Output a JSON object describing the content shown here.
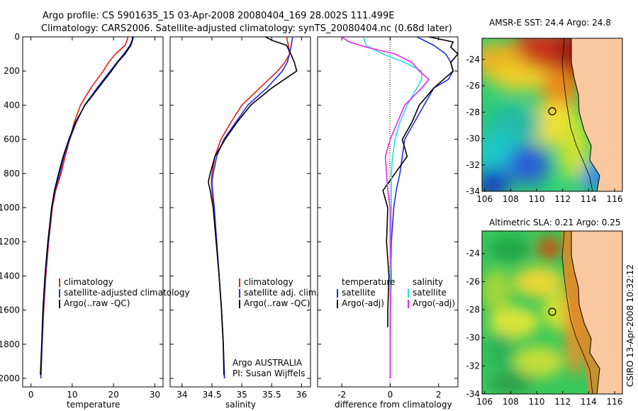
{
  "figure": {
    "title_line1": "Argo profile: CS 5901635_15 03-Apr-2008 20080404_169 28.002S 111.499E",
    "title_line2": "Climatology: CARS2006. Satellite-adjusted climatology: synTS_20080404.nc (0.68d later)",
    "credit": "CSIRO 13-Apr-2008 10:32:12",
    "float_info_line1": "Argo AUSTRALIA",
    "float_info_line2": "PI: Susan Wijffels"
  },
  "colors": {
    "climatology": "#e41a1c",
    "satellite": "#1f2ee0",
    "argo": "#000000",
    "sal_sat": "#22e0e0",
    "sal_argo": "#ee22ee",
    "land": "#f9c8a0"
  },
  "legends": {
    "temp": [
      "climatology",
      "satellite-adjusted climatology",
      "Argo(..raw -QC)"
    ],
    "sal": [
      "climatology",
      "satellite adj. clim.",
      "Argo(..raw -QC)"
    ],
    "diff_temp_header": "temperature",
    "diff_sal_header": "salinity",
    "diff_temp": [
      "satellite",
      "Argo(-adj)"
    ],
    "diff_sal": [
      "satellite",
      "Argo(-adj)"
    ]
  },
  "chart_data": [
    {
      "type": "line",
      "xlabel": "temperature",
      "ylabel": "",
      "xlim": [
        -2,
        32
      ],
      "ylim": [
        2050,
        0
      ],
      "xticks": [
        0,
        10,
        20,
        30
      ],
      "yticks": [
        0,
        200,
        400,
        600,
        800,
        1000,
        1200,
        1400,
        1600,
        1800,
        2000
      ],
      "series": [
        {
          "name": "climatology",
          "color_key": "climatology",
          "pressure": [
            0,
            20,
            50,
            100,
            150,
            200,
            300,
            400,
            500,
            600,
            700,
            800,
            900,
            1000,
            1200,
            1400,
            1600,
            1800,
            2000
          ],
          "values": [
            23.5,
            23.3,
            22.8,
            20.5,
            18.8,
            17.5,
            14.5,
            12,
            10.5,
            9.4,
            8.3,
            7.3,
            6,
            5.2,
            4.3,
            3.6,
            3.1,
            2.7,
            2.4
          ]
        },
        {
          "name": "satellite-adjusted climatology",
          "color_key": "satellite",
          "pressure": [
            0,
            20,
            50,
            100,
            150,
            200,
            300,
            400,
            500,
            600,
            700,
            800,
            900,
            1000,
            1200,
            1400,
            1600,
            1800,
            2000
          ],
          "values": [
            24.6,
            24.5,
            24,
            22.5,
            20.8,
            19.2,
            16,
            13,
            11,
            9.4,
            8,
            7,
            5.8,
            5.1,
            4.2,
            3.5,
            3,
            2.7,
            2.4
          ]
        },
        {
          "name": "Argo(..raw -QC)",
          "color_key": "argo",
          "pressure": [
            0,
            20,
            50,
            100,
            150,
            200,
            300,
            400,
            500,
            600,
            700,
            800,
            900,
            1000,
            1200,
            1400,
            1600,
            1800,
            1980
          ],
          "values": [
            24.8,
            24.6,
            24.2,
            22.8,
            21,
            19.5,
            16.3,
            13.1,
            10.8,
            9.2,
            7.8,
            6.7,
            5.7,
            5,
            4.1,
            3.4,
            2.9,
            2.6,
            2.3
          ]
        }
      ]
    },
    {
      "type": "line",
      "xlabel": "salinity",
      "ylabel": "",
      "xlim": [
        33.8,
        36.15
      ],
      "ylim": [
        2050,
        0
      ],
      "xticks": [
        34,
        34.5,
        35,
        35.5,
        36
      ],
      "xticklabels": [
        "34",
        "34.5",
        "35",
        "35.5",
        "36"
      ],
      "series": [
        {
          "name": "climatology",
          "color_key": "climatology",
          "pressure": [
            0,
            50,
            100,
            150,
            200,
            300,
            400,
            500,
            600,
            700,
            800,
            850,
            900,
            1000,
            1200,
            1400,
            1600,
            1800,
            2000
          ],
          "values": [
            35.75,
            35.78,
            35.8,
            35.72,
            35.6,
            35.3,
            35.0,
            34.82,
            34.65,
            34.55,
            34.5,
            34.49,
            34.5,
            34.53,
            34.58,
            34.62,
            34.66,
            34.69,
            34.71
          ]
        },
        {
          "name": "satellite adj. clim.",
          "color_key": "satellite",
          "pressure": [
            0,
            50,
            100,
            150,
            200,
            300,
            400,
            500,
            600,
            700,
            800,
            850,
            900,
            1000,
            1200,
            1400,
            1600,
            1800,
            2000
          ],
          "values": [
            35.85,
            35.83,
            35.8,
            35.76,
            35.68,
            35.42,
            35.1,
            34.9,
            34.7,
            34.58,
            34.52,
            34.5,
            34.51,
            34.54,
            34.58,
            34.62,
            34.66,
            34.69,
            34.71
          ]
        },
        {
          "name": "Argo(..raw -QC)",
          "color_key": "argo",
          "pressure": [
            0,
            20,
            50,
            100,
            150,
            200,
            300,
            400,
            500,
            600,
            700,
            800,
            850,
            900,
            1000,
            1200,
            1400,
            1600,
            1800,
            1980
          ],
          "values": [
            35.4,
            35.5,
            35.75,
            35.82,
            35.88,
            35.92,
            35.5,
            35.15,
            34.92,
            34.72,
            34.55,
            34.47,
            34.44,
            34.47,
            34.52,
            34.57,
            34.62,
            34.66,
            34.69,
            34.7
          ]
        }
      ]
    },
    {
      "type": "line",
      "xlabel": "difference from climatology",
      "ylabel": "",
      "xlim": [
        -3,
        2.8
      ],
      "ylim": [
        2050,
        0
      ],
      "xticks": [
        -2,
        0,
        2
      ],
      "series": [
        {
          "name": "temperature satellite",
          "color_key": "satellite",
          "pressure": [
            0,
            50,
            100,
            150,
            200,
            250,
            300,
            400,
            500,
            600,
            700,
            800,
            900,
            1000,
            1200,
            1400,
            1600,
            1800,
            2000
          ],
          "values": [
            1.1,
            1.8,
            2.3,
            2.5,
            2.6,
            2.4,
            1.8,
            1.4,
            1.0,
            0.6,
            0.5,
            0.4,
            0.25,
            0.15,
            0.05,
            0.02,
            0.01,
            0,
            0
          ]
        },
        {
          "name": "temperature Argo(-adj)",
          "color_key": "argo",
          "pressure": [
            0,
            30,
            60,
            100,
            150,
            200,
            250,
            300,
            400,
            500,
            600,
            700,
            800,
            900,
            1000,
            1200,
            1400,
            1600,
            1700
          ],
          "values": [
            1.6,
            2.6,
            2.5,
            2.8,
            2.5,
            2.6,
            2.2,
            1.8,
            1.2,
            0.9,
            0.5,
            0.7,
            0.2,
            -0.3,
            -0.1,
            -0.15,
            -0.05,
            -0.1,
            -0.1
          ]
        },
        {
          "name": "salinity satellite",
          "color_key": "sal_sat",
          "pressure": [
            0,
            50,
            100,
            150,
            200,
            250,
            300,
            400,
            500,
            600,
            700,
            800,
            900,
            1000,
            1200,
            1400,
            1600,
            1800,
            2000
          ],
          "values": [
            -1.1,
            -1.0,
            -0.3,
            0.6,
            1.3,
            1.3,
            1.1,
            0.7,
            0.4,
            0.2,
            0.1,
            0.05,
            0.05,
            0.05,
            0.02,
            0.01,
            0,
            0,
            0
          ]
        },
        {
          "name": "salinity Argo(-adj)",
          "color_key": "sal_argo",
          "pressure": [
            0,
            30,
            60,
            100,
            150,
            200,
            250,
            300,
            400,
            500,
            600,
            700,
            800,
            900,
            1000,
            1200,
            1400,
            1600,
            1800,
            2000
          ],
          "values": [
            -2.0,
            -1.7,
            -1.0,
            0.2,
            0.9,
            1.2,
            1.6,
            1.3,
            0.6,
            0.3,
            0.0,
            -0.2,
            -0.15,
            -0.1,
            0.0,
            0.0,
            0.05,
            0.0,
            0.0,
            0.0
          ]
        }
      ]
    },
    {
      "type": "heatmap",
      "title": "AMSR-E SST: 24.4 Argo: 24.8",
      "xlim": [
        105.8,
        116.6
      ],
      "ylim": [
        -34,
        -22.4
      ],
      "xticks": [
        106,
        108,
        110,
        112,
        114,
        116
      ],
      "yticks": [
        -24,
        -26,
        -28,
        -30,
        -32,
        -34
      ],
      "marker": {
        "lon": 111.5,
        "lat": -28
      }
    },
    {
      "type": "heatmap",
      "title": "Altimetric SLA: 0.21 Argo: 0.25",
      "xlim": [
        105.8,
        116.6
      ],
      "ylim": [
        -34,
        -22.4
      ],
      "xticks": [
        106,
        108,
        110,
        112,
        114,
        116
      ],
      "yticks": [
        -24,
        -26,
        -28,
        -30,
        -32,
        -34
      ],
      "marker": {
        "lon": 111.5,
        "lat": -28
      }
    }
  ]
}
